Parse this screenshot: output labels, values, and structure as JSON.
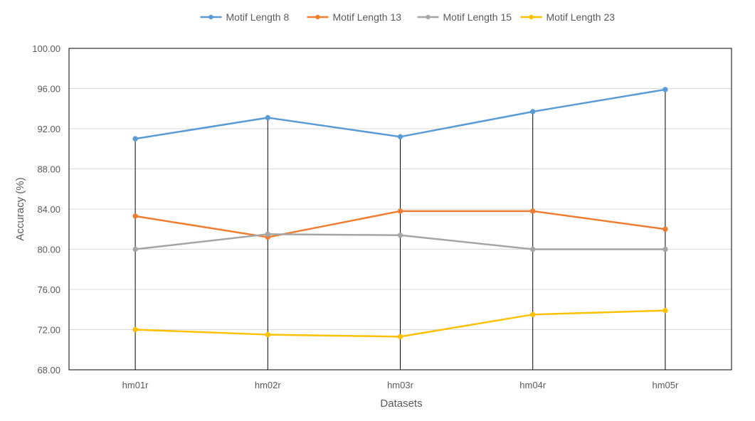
{
  "chart_data": {
    "type": "line",
    "title": "",
    "xlabel": "Datasets",
    "ylabel": "Accuracy (%)",
    "categories": [
      "hm01r",
      "hm02r",
      "hm03r",
      "hm04r",
      "hm05r"
    ],
    "ylim": [
      68,
      100
    ],
    "yticks": [
      "68.00",
      "72.00",
      "76.00",
      "80.00",
      "84.00",
      "88.00",
      "92.00",
      "96.00",
      "100.00"
    ],
    "grid": true,
    "legend": "top-center",
    "series": [
      {
        "name": "Motif Length 8",
        "color": "#5B9BD5",
        "values": [
          91.0,
          93.1,
          91.2,
          93.7,
          95.9
        ]
      },
      {
        "name": "Motif Length 13",
        "color": "#ED7D31",
        "values": [
          83.3,
          81.2,
          83.8,
          83.8,
          82.0
        ]
      },
      {
        "name": "Motif Length 15",
        "color": "#A5A5A5",
        "values": [
          80.0,
          81.5,
          81.4,
          80.0,
          80.0
        ]
      },
      {
        "name": "Motif Length 23",
        "color": "#FFC000",
        "values": [
          72.0,
          71.5,
          71.3,
          73.5,
          73.9
        ]
      }
    ]
  }
}
